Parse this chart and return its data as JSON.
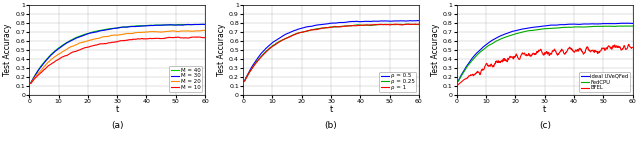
{
  "title_a": "(a)",
  "title_b": "(b)",
  "title_c": "(c)",
  "xlabel": "t",
  "ylabel": "Test Accuracy",
  "xlim": [
    0,
    60
  ],
  "ylim": [
    0,
    1
  ],
  "yticks": [
    0,
    0.1,
    0.2,
    0.3,
    0.4,
    0.5,
    0.6,
    0.7,
    0.8,
    0.9,
    1.0
  ],
  "ytick_labels": [
    "0",
    "0.1",
    "0.2",
    "0.3",
    "0.4",
    "0.5",
    "0.6",
    "0.7",
    "0.8",
    "0.9",
    "1"
  ],
  "xticks": [
    0,
    10,
    20,
    30,
    40,
    50,
    60
  ],
  "legend_a": [
    "M = 40",
    "M = 30",
    "M = 20",
    "M = 10"
  ],
  "legend_b": [
    "ρ = 0.5",
    "ρ = 0.25",
    "ρ = 1"
  ],
  "legend_c": [
    "ideal UVeQFed",
    "FedCPU",
    "BFEL"
  ],
  "colors_a": [
    "#00cc00",
    "#0000ff",
    "#ff8800",
    "#ff0000"
  ],
  "colors_b": [
    "#0000ff",
    "#00aa00",
    "#ff0000"
  ],
  "colors_c": [
    "#0000ff",
    "#00aa00",
    "#ff0000"
  ],
  "figsize": [
    6.4,
    1.51
  ],
  "dpi": 100
}
